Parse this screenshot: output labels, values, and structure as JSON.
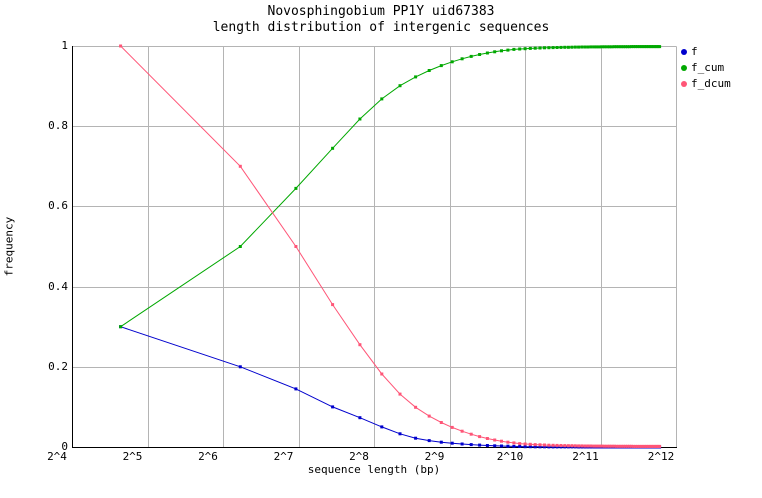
{
  "chart_data": {
    "type": "line",
    "title": "Novosphingobium PP1Y uid67383",
    "subtitle": "length distribution of intergenic sequences",
    "xlabel": "sequence length (bp)",
    "ylabel": "frequency",
    "x_scale": "log2",
    "xlim": [
      16,
      4096
    ],
    "ylim": [
      0,
      1
    ],
    "grid": true,
    "grid_color": "#b4b4b4",
    "axis_color": "#000000",
    "legend_position": "outside-right-top",
    "x_tick_labels": [
      "2^4",
      "2^5",
      "2^6",
      "2^7",
      "2^8",
      "2^9",
      "2^10",
      "2^11",
      "2^12"
    ],
    "x_tick_values": [
      16,
      32,
      64,
      128,
      256,
      512,
      1024,
      2048,
      4096
    ],
    "y_tick_labels": [
      "0",
      "0.2",
      "0.4",
      "0.6",
      "0.8",
      "1"
    ],
    "y_tick_values": [
      0,
      0.2,
      0.4,
      0.6,
      0.8,
      1
    ],
    "x": [
      25,
      75,
      125,
      175,
      225,
      275,
      325,
      375,
      425,
      475,
      525,
      575,
      625,
      675,
      725,
      775,
      825,
      875,
      925,
      975,
      1025,
      1075,
      1125,
      1175,
      1225,
      1275,
      1325,
      1375,
      1425,
      1475,
      1525,
      1575,
      1625,
      1675,
      1725,
      1775,
      1825,
      1875,
      1925,
      1975,
      2025,
      2075,
      2125,
      2175,
      2225,
      2275,
      2325,
      2375,
      2425,
      2475,
      2525,
      2575,
      2625,
      2675,
      2725,
      2775,
      2825,
      2875,
      2925,
      2975,
      3025,
      3075,
      3125,
      3175,
      3225,
      3275,
      3325,
      3375,
      3425,
      3475,
      3525
    ],
    "series": [
      {
        "name": "f",
        "color": "#0000cd",
        "values": [
          0.3,
          0.2,
          0.145,
          0.1,
          0.073,
          0.05,
          0.033,
          0.022,
          0.016,
          0.012,
          0.0095,
          0.0075,
          0.006,
          0.0048,
          0.0038,
          0.003,
          0.0024,
          0.0019,
          0.0015,
          0.0012,
          0.00075,
          0.00065,
          0.00055,
          0.00047,
          0.0004,
          0.00034,
          0.00029,
          0.00025,
          0.00022,
          0.00019,
          0.00017,
          0.00015,
          0.00013,
          0.00012,
          0.00011,
          0.0001,
          9e-05,
          8e-05,
          7e-05,
          7e-05,
          6e-05,
          6e-05,
          5e-05,
          5e-05,
          5e-05,
          4e-05,
          4e-05,
          4e-05,
          3e-05,
          3e-05,
          3e-05,
          3e-05,
          3e-05,
          2e-05,
          2e-05,
          2e-05,
          2e-05,
          2e-05,
          2e-05,
          2e-05,
          1e-05,
          1e-05,
          1e-05,
          1e-05,
          1e-05,
          1e-05,
          1e-05,
          1e-05,
          1e-05,
          1e-05,
          1e-05
        ]
      },
      {
        "name": "f_cum",
        "color": "#00a800",
        "values": [
          0.3,
          0.5,
          0.645,
          0.745,
          0.818,
          0.868,
          0.901,
          0.923,
          0.939,
          0.951,
          0.9605,
          0.968,
          0.974,
          0.9788,
          0.9826,
          0.9856,
          0.988,
          0.9899,
          0.9914,
          0.9926,
          0.99335,
          0.994,
          0.99455,
          0.99502,
          0.99542,
          0.99576,
          0.99605,
          0.9963,
          0.99652,
          0.99671,
          0.99688,
          0.99703,
          0.99716,
          0.99728,
          0.99739,
          0.99749,
          0.99758,
          0.99766,
          0.99773,
          0.9978,
          0.99786,
          0.99792,
          0.99797,
          0.99802,
          0.99807,
          0.99811,
          0.99815,
          0.99819,
          0.99822,
          0.99825,
          0.99828,
          0.99831,
          0.99834,
          0.99836,
          0.99838,
          0.9984,
          0.99842,
          0.99844,
          0.99846,
          0.99848,
          0.99849,
          0.9985,
          0.99851,
          0.99852,
          0.99853,
          0.99854,
          0.99855,
          0.99856,
          0.99857,
          0.99858,
          0.99859
        ]
      },
      {
        "name": "f_dcum",
        "color": "#ff5577",
        "values": [
          1.0,
          0.7,
          0.5,
          0.355,
          0.255,
          0.182,
          0.132,
          0.099,
          0.077,
          0.061,
          0.049,
          0.0395,
          0.032,
          0.026,
          0.0212,
          0.0174,
          0.0144,
          0.012,
          0.0101,
          0.0086,
          0.0074,
          0.00665,
          0.006,
          0.00545,
          0.00498,
          0.00458,
          0.00424,
          0.00395,
          0.0037,
          0.00348,
          0.00329,
          0.00312,
          0.00297,
          0.00284,
          0.00272,
          0.00261,
          0.00251,
          0.00242,
          0.00234,
          0.00227,
          0.0022,
          0.00214,
          0.00208,
          0.00203,
          0.00198,
          0.00193,
          0.00189,
          0.00185,
          0.00181,
          0.00178,
          0.00175,
          0.00172,
          0.00169,
          0.00166,
          0.00164,
          0.00162,
          0.0016,
          0.00158,
          0.00156,
          0.00154,
          0.00152,
          0.00151,
          0.0015,
          0.00149,
          0.00148,
          0.00147,
          0.00146,
          0.00145,
          0.00144,
          0.00143,
          0.00142
        ]
      }
    ]
  }
}
